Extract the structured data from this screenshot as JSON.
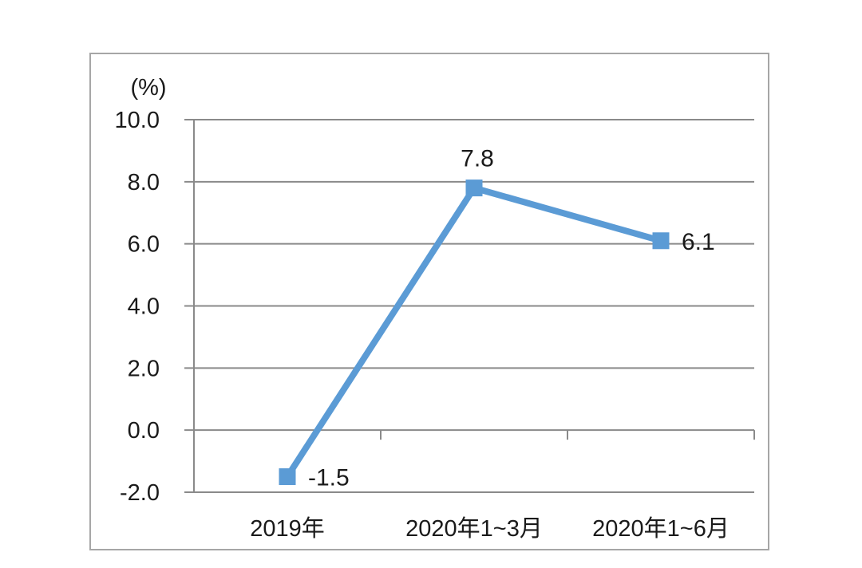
{
  "colors": {
    "background": "#ffffff",
    "frame_border": "#a6a6a6",
    "grid": "#8a8a8a",
    "axis": "#8a8a8a",
    "line": "#5b9bd5",
    "marker": "#5b9bd5",
    "text": "#1a1a1a"
  },
  "chart_data": {
    "type": "line",
    "title": "",
    "xlabel": "",
    "ylabel": "",
    "unit_label": "(%)",
    "categories": [
      "2019年",
      "2020年1~3月",
      "2020年1~6月"
    ],
    "series": [
      {
        "name": "",
        "values": [
          -1.5,
          7.8,
          6.1
        ],
        "data_labels": [
          "-1.5",
          "7.8",
          "6.1"
        ],
        "label_positions": [
          "right",
          "above",
          "right"
        ]
      }
    ],
    "y_ticks": [
      "10.0",
      "8.0",
      "6.0",
      "4.0",
      "2.0",
      "0.0",
      "-2.0"
    ],
    "ylim": [
      -2.0,
      10.0
    ],
    "y_tick_step": 2.0,
    "grid": true,
    "legend": "none",
    "marker_shape": "square"
  }
}
